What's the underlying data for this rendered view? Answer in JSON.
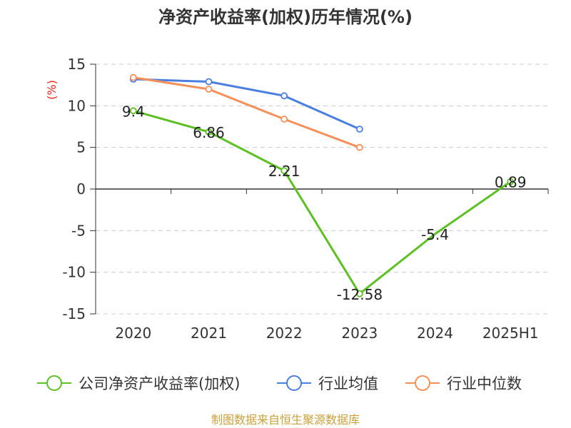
{
  "chart_data": {
    "type": "line",
    "title": "净资产收益率(加权)历年情况(%)",
    "ylabel": "(%)",
    "xlabel": "",
    "categories": [
      "2020",
      "2021",
      "2022",
      "2023",
      "2024",
      "2025H1"
    ],
    "ylim": [
      -15,
      15
    ],
    "yticks": [
      15,
      10,
      5,
      0,
      -5,
      -10,
      -15
    ],
    "grid": true,
    "legend_position": "bottom",
    "series": [
      {
        "name": "公司净资产收益率(加权)",
        "color": "#5cc024",
        "values": [
          9.4,
          6.86,
          2.21,
          -12.58,
          -5.4,
          0.89
        ],
        "labels": [
          "9.4",
          "6.86",
          "2.21",
          "-12.58",
          "-5.4",
          "0.89"
        ],
        "markers": [
          true,
          true,
          true,
          true,
          false,
          true
        ]
      },
      {
        "name": "行业均值",
        "color": "#4a7fdf",
        "values": [
          13.2,
          12.9,
          11.2,
          7.2,
          null,
          null
        ]
      },
      {
        "name": "行业中位数",
        "color": "#f5905a",
        "values": [
          13.4,
          12.0,
          8.4,
          5.0,
          null,
          null
        ]
      }
    ]
  },
  "source": "制图数据来自恒生聚源数据库"
}
